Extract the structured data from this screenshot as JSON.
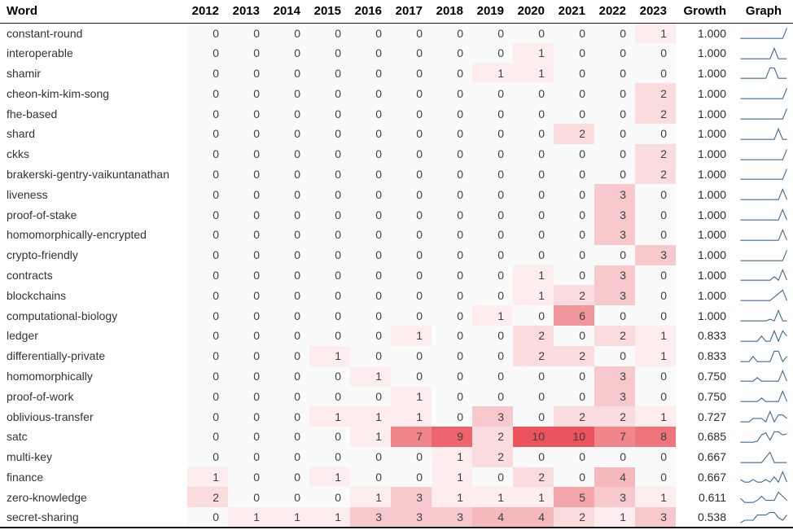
{
  "chart_data": {
    "type": "table",
    "title": "Word frequency by year with growth and sparkline",
    "columns": [
      "Word",
      "2012",
      "2013",
      "2014",
      "2015",
      "2016",
      "2017",
      "2018",
      "2019",
      "2020",
      "2021",
      "2022",
      "2023",
      "Growth",
      "Graph"
    ],
    "years": [
      "2012",
      "2013",
      "2014",
      "2015",
      "2016",
      "2017",
      "2018",
      "2019",
      "2020",
      "2021",
      "2022",
      "2023"
    ],
    "rows": [
      {
        "word": "constant-round",
        "values": [
          0,
          0,
          0,
          0,
          0,
          0,
          0,
          0,
          0,
          0,
          0,
          1
        ],
        "growth": "1.000"
      },
      {
        "word": "interoperable",
        "values": [
          0,
          0,
          0,
          0,
          0,
          0,
          0,
          0,
          1,
          0,
          0,
          0
        ],
        "growth": "1.000"
      },
      {
        "word": "shamir",
        "values": [
          0,
          0,
          0,
          0,
          0,
          0,
          0,
          1,
          1,
          0,
          0,
          0
        ],
        "growth": "1.000"
      },
      {
        "word": "cheon-kim-kim-song",
        "values": [
          0,
          0,
          0,
          0,
          0,
          0,
          0,
          0,
          0,
          0,
          0,
          2
        ],
        "growth": "1.000"
      },
      {
        "word": "fhe-based",
        "values": [
          0,
          0,
          0,
          0,
          0,
          0,
          0,
          0,
          0,
          0,
          0,
          2
        ],
        "growth": "1.000"
      },
      {
        "word": "shard",
        "values": [
          0,
          0,
          0,
          0,
          0,
          0,
          0,
          0,
          0,
          2,
          0,
          0
        ],
        "growth": "1.000"
      },
      {
        "word": "ckks",
        "values": [
          0,
          0,
          0,
          0,
          0,
          0,
          0,
          0,
          0,
          0,
          0,
          2
        ],
        "growth": "1.000"
      },
      {
        "word": "brakerski-gentry-vaikuntanathan",
        "values": [
          0,
          0,
          0,
          0,
          0,
          0,
          0,
          0,
          0,
          0,
          0,
          2
        ],
        "growth": "1.000"
      },
      {
        "word": "liveness",
        "values": [
          0,
          0,
          0,
          0,
          0,
          0,
          0,
          0,
          0,
          0,
          3,
          0
        ],
        "growth": "1.000"
      },
      {
        "word": "proof-of-stake",
        "values": [
          0,
          0,
          0,
          0,
          0,
          0,
          0,
          0,
          0,
          0,
          3,
          0
        ],
        "growth": "1.000"
      },
      {
        "word": "homomorphically-encrypted",
        "values": [
          0,
          0,
          0,
          0,
          0,
          0,
          0,
          0,
          0,
          0,
          3,
          0
        ],
        "growth": "1.000"
      },
      {
        "word": "crypto-friendly",
        "values": [
          0,
          0,
          0,
          0,
          0,
          0,
          0,
          0,
          0,
          0,
          0,
          3
        ],
        "growth": "1.000"
      },
      {
        "word": "contracts",
        "values": [
          0,
          0,
          0,
          0,
          0,
          0,
          0,
          0,
          1,
          0,
          3,
          0
        ],
        "growth": "1.000"
      },
      {
        "word": "blockchains",
        "values": [
          0,
          0,
          0,
          0,
          0,
          0,
          0,
          0,
          1,
          2,
          3,
          0
        ],
        "growth": "1.000"
      },
      {
        "word": "computational-biology",
        "values": [
          0,
          0,
          0,
          0,
          0,
          0,
          0,
          1,
          0,
          6,
          0,
          0
        ],
        "growth": "1.000"
      },
      {
        "word": "ledger",
        "values": [
          0,
          0,
          0,
          0,
          0,
          1,
          0,
          0,
          2,
          0,
          2,
          1
        ],
        "growth": "0.833"
      },
      {
        "word": "differentially-private",
        "values": [
          0,
          0,
          0,
          1,
          0,
          0,
          0,
          0,
          2,
          2,
          0,
          1
        ],
        "growth": "0.833"
      },
      {
        "word": "homomorphically",
        "values": [
          0,
          0,
          0,
          0,
          1,
          0,
          0,
          0,
          0,
          0,
          3,
          0
        ],
        "growth": "0.750"
      },
      {
        "word": "proof-of-work",
        "values": [
          0,
          0,
          0,
          0,
          0,
          1,
          0,
          0,
          0,
          0,
          3,
          0
        ],
        "growth": "0.750"
      },
      {
        "word": "oblivious-transfer",
        "values": [
          0,
          0,
          0,
          1,
          1,
          1,
          0,
          3,
          0,
          2,
          2,
          1
        ],
        "growth": "0.727"
      },
      {
        "word": "satc",
        "values": [
          0,
          0,
          0,
          0,
          1,
          7,
          9,
          2,
          10,
          10,
          7,
          8
        ],
        "growth": "0.685"
      },
      {
        "word": "multi-key",
        "values": [
          0,
          0,
          0,
          0,
          0,
          0,
          1,
          2,
          0,
          0,
          0,
          0
        ],
        "growth": "0.667"
      },
      {
        "word": "finance",
        "values": [
          1,
          0,
          0,
          1,
          0,
          0,
          1,
          0,
          2,
          0,
          4,
          0
        ],
        "growth": "0.667"
      },
      {
        "word": "zero-knowledge",
        "values": [
          2,
          0,
          0,
          0,
          1,
          3,
          1,
          1,
          1,
          5,
          3,
          1
        ],
        "growth": "0.611"
      },
      {
        "word": "secret-sharing",
        "values": [
          0,
          1,
          1,
          1,
          3,
          3,
          3,
          4,
          4,
          2,
          1,
          3
        ],
        "growth": "0.538"
      }
    ],
    "heat_colors": {
      "0": "#fbfafb",
      "1": "#fdedef",
      "2": "#fadbde",
      "3": "#f7c9cd",
      "4": "#f5b8bd",
      "5": "#f3a7ad",
      "6": "#f1969c",
      "7": "#f0858b",
      "8": "#ee757c",
      "9": "#ed646c",
      "10": "#eb545c"
    },
    "sparkline_color": "#3d6899",
    "layout": {
      "grid": "off",
      "heat_scale_range": [
        0,
        10
      ],
      "sparkline_normalization": "per-row min-max"
    }
  }
}
